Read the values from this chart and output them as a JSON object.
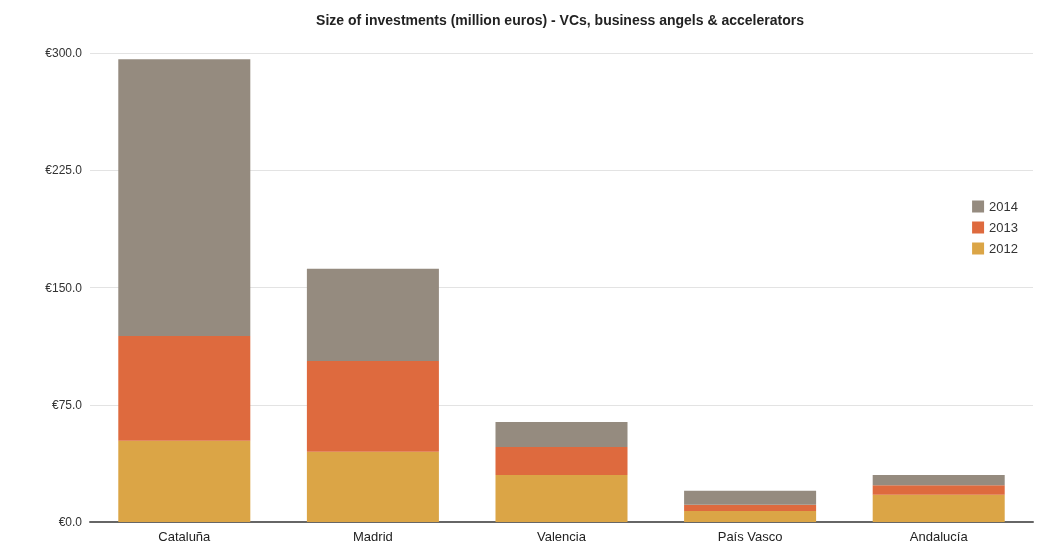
{
  "chart_data": {
    "type": "bar",
    "title": "Size of investments (million euros) - VCs, business angels & accelerators",
    "categories": [
      "Cataluña",
      "Madrid",
      "Valencia",
      "País Vasco",
      "Andalucía"
    ],
    "stacked": true,
    "series": [
      {
        "name": "2012",
        "color": "#dba546",
        "values": [
          52,
          45,
          30,
          7,
          17.5
        ]
      },
      {
        "name": "2013",
        "color": "#de6a3e",
        "values": [
          67,
          58,
          18,
          4,
          6
        ]
      },
      {
        "name": "2014",
        "color": "#958b7f",
        "values": [
          177,
          59,
          16,
          9,
          6.5
        ]
      }
    ],
    "ylim": [
      0,
      300
    ],
    "yticks": [
      {
        "value": 0,
        "label": "€0.0"
      },
      {
        "value": 75,
        "label": "€75.0"
      },
      {
        "value": 150,
        "label": "€150.0"
      },
      {
        "value": 225,
        "label": "€225.0"
      },
      {
        "value": 300,
        "label": "€300.0"
      }
    ],
    "grid": "y",
    "legend": "right"
  }
}
